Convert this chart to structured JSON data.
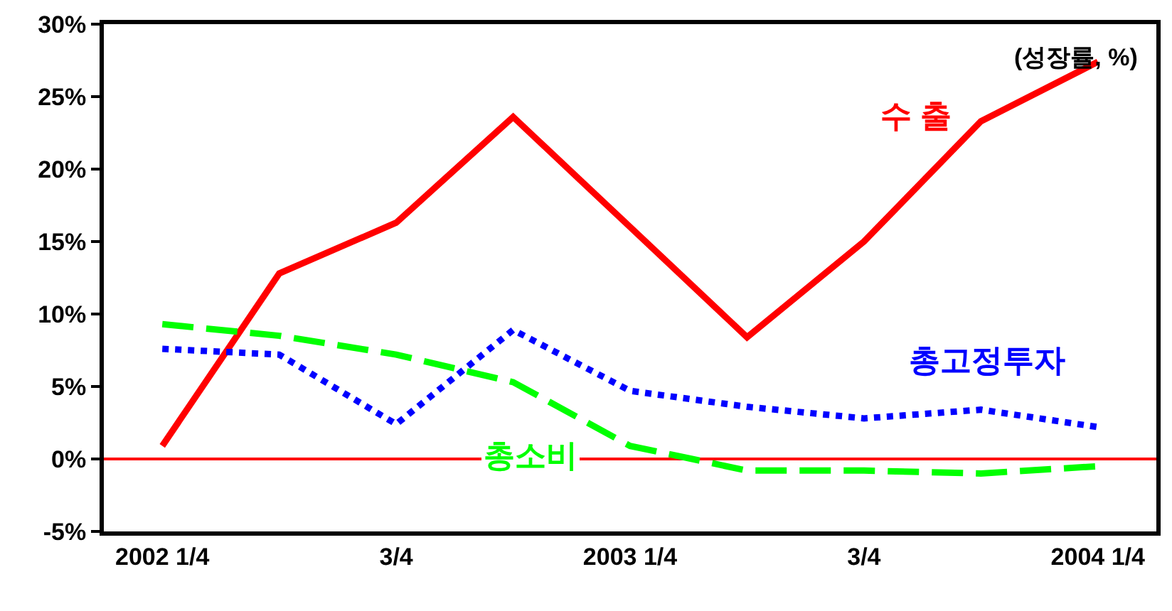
{
  "chart_data": {
    "type": "line",
    "categories": [
      "2002 1/4",
      null,
      "3/4",
      null,
      "2003 1/4",
      null,
      "3/4",
      null,
      "2004 1/4"
    ],
    "series": [
      {
        "name": "수 출",
        "color": "#ff0000",
        "line_style": "solid",
        "values": [
          0.9,
          12.8,
          16.3,
          23.6,
          16.0,
          8.4,
          15.0,
          23.3,
          27.4
        ]
      },
      {
        "name": "총고정투자",
        "color": "#0000ff",
        "line_style": "dotted",
        "values": [
          7.6,
          7.2,
          2.4,
          8.9,
          4.7,
          3.6,
          2.8,
          3.4,
          2.2
        ]
      },
      {
        "name": "총소비",
        "color": "#00ff00",
        "line_style": "dashed",
        "values": [
          9.3,
          8.5,
          7.2,
          5.3,
          0.9,
          -0.8,
          -0.8,
          -1.0,
          -0.5
        ]
      }
    ],
    "ylim": [
      -5,
      30
    ],
    "yticks": [
      {
        "value": -5,
        "label": "-5%"
      },
      {
        "value": 0,
        "label": "0%"
      },
      {
        "value": 5,
        "label": "5%"
      },
      {
        "value": 10,
        "label": "10%"
      },
      {
        "value": 15,
        "label": "15%"
      },
      {
        "value": 20,
        "label": "20%"
      },
      {
        "value": 25,
        "label": "25%"
      },
      {
        "value": 30,
        "label": "30%"
      }
    ],
    "ref_lines": [
      {
        "axis": "y",
        "value": 0,
        "color": "#ff0000",
        "line_style": "solid"
      }
    ],
    "annotations": [
      "(성장률, %)"
    ],
    "grid": false,
    "legend": false,
    "marker": "none"
  }
}
